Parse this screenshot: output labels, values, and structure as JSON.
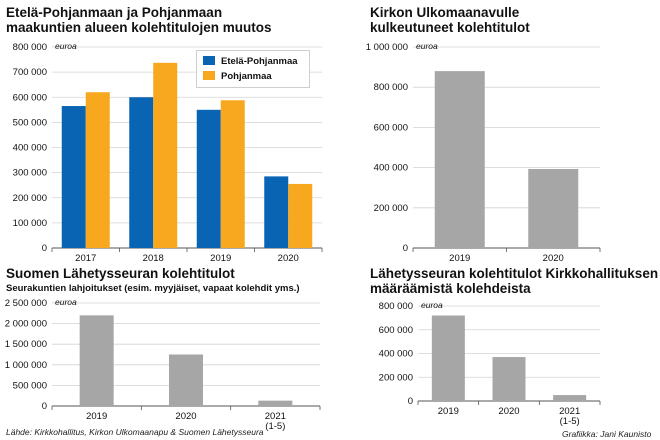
{
  "colors": {
    "ep": "#0a64b4",
    "pm": "#f8a81f",
    "gray": "#a6a6a6",
    "grid": "#d4d4d4",
    "axis": "#555555"
  },
  "panels": {
    "p1": {
      "title_line1": "Etelä-Pohjanmaan ja Pohjanmaan",
      "title_line2": "maakuntien alueen kolehtitulojen muutos"
    },
    "p2": {
      "title_line1": "Kirkon Ulkomaanavulle",
      "title_line2": "kulkeutuneet kolehtitulot"
    },
    "p3": {
      "title": "Suomen Lähetysseuran kolehtitulot",
      "subtitle": "Seurakuntien lahjoitukset (esim. myyjäiset, vapaat kolehdit yms.)"
    },
    "p4": {
      "title_line1": "Lähetysseuran kolehtitulot Kirkkohallituksen",
      "title_line2": "määräämistä kolehdeista"
    }
  },
  "footer": {
    "source": "Lähde: Kirkkohallitus, Kirkon Ulkomaanapu & Suomen Lähetysseura",
    "credit": "Grafiikka: Jani Kaunisto"
  },
  "chart_data": [
    {
      "type": "bar",
      "title": "Etelä-Pohjanmaan ja Pohjanmaan maakuntien alueen kolehtitulojen muutos",
      "unit": "euroa",
      "categories": [
        "2017",
        "2018",
        "2019",
        "2020"
      ],
      "series": [
        {
          "name": "Etelä-Pohjanmaa",
          "values": [
            565000,
            600000,
            550000,
            285000
          ]
        },
        {
          "name": "Pohjanmaa",
          "values": [
            620000,
            737000,
            588000,
            255000
          ]
        }
      ],
      "ylim": [
        0,
        800000
      ],
      "yticks": [
        0,
        100000,
        200000,
        300000,
        400000,
        500000,
        600000,
        700000,
        800000
      ],
      "ytick_labels": [
        "0",
        "100 000",
        "200 000",
        "300 000",
        "400 000",
        "500 000",
        "600 000",
        "700 000",
        "800 000"
      ],
      "legend": "top-right"
    },
    {
      "type": "bar",
      "title": "Kirkon Ulkomaanavulle kulkeutuneet kolehtitulot",
      "unit": "euroa",
      "categories": [
        "2019",
        "2020"
      ],
      "values": [
        880000,
        393000
      ],
      "ylim": [
        0,
        1000000
      ],
      "yticks": [
        0,
        200000,
        400000,
        600000,
        800000,
        1000000
      ],
      "ytick_labels": [
        "0",
        "200 000",
        "400 000",
        "600 000",
        "800 000",
        "1 000 000"
      ]
    },
    {
      "type": "bar",
      "title": "Suomen Lähetysseuran kolehtitulot",
      "subtitle": "Seurakuntien lahjoitukset (esim. myyjäiset, vapaat kolehdit yms.)",
      "unit": "euroa",
      "categories": [
        "2019",
        "2020",
        "2021\n(1-5)"
      ],
      "values": [
        2200000,
        1250000,
        130000
      ],
      "ylim": [
        0,
        2500000
      ],
      "yticks": [
        0,
        500000,
        1000000,
        1500000,
        2000000,
        2500000
      ],
      "ytick_labels": [
        "0",
        "500 000",
        "1 000 000",
        "1 500 000",
        "2 000 000",
        "2 500 000"
      ]
    },
    {
      "type": "bar",
      "title": "Lähetysseuran kolehtitulot Kirkkohallituksen määräämistä kolehdeista",
      "unit": "euroa",
      "categories": [
        "2019",
        "2020",
        "2021\n(1-5)"
      ],
      "values": [
        720000,
        370000,
        50000
      ],
      "ylim": [
        0,
        800000
      ],
      "yticks": [
        0,
        200000,
        400000,
        600000,
        800000
      ],
      "ytick_labels": [
        "0",
        "200 000",
        "400 000",
        "600 000",
        "800 000"
      ]
    }
  ]
}
